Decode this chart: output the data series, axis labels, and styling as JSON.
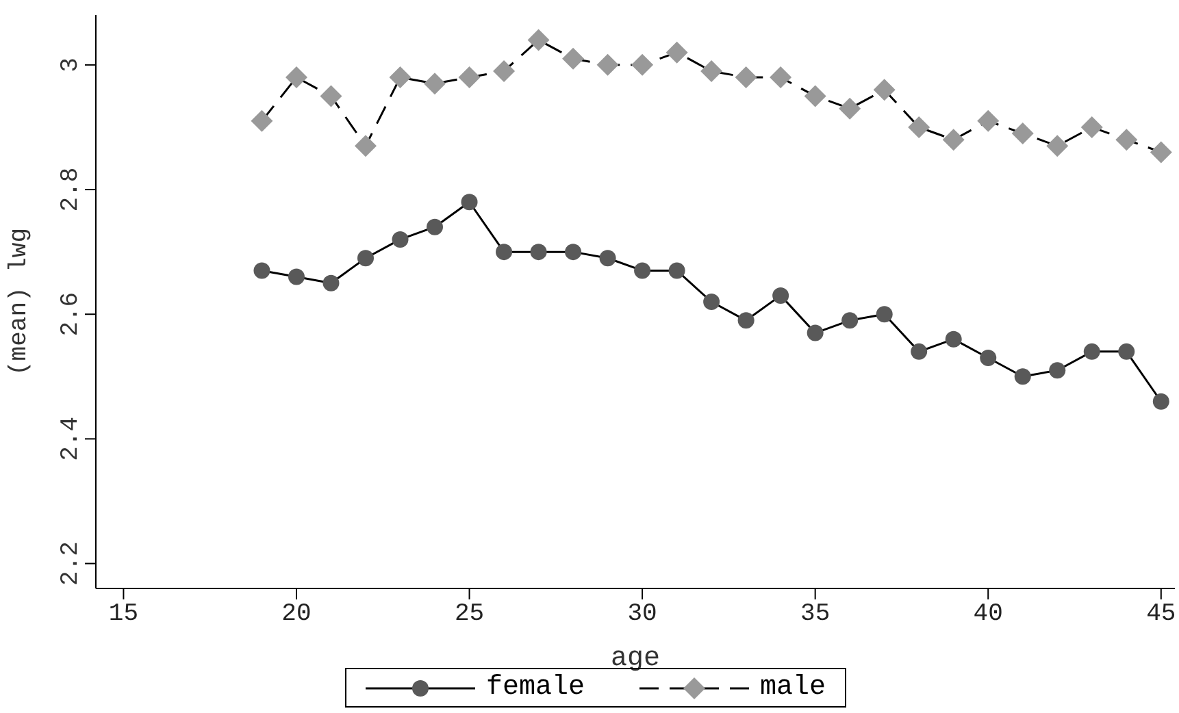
{
  "chart_data": {
    "type": "line",
    "xlabel": "age",
    "ylabel": "(mean) lwg",
    "x": [
      19,
      20,
      21,
      22,
      23,
      24,
      25,
      26,
      27,
      28,
      29,
      30,
      31,
      32,
      33,
      34,
      35,
      36,
      37,
      38,
      39,
      40,
      41,
      42,
      43,
      44,
      45
    ],
    "series": [
      {
        "name": "female",
        "color": "#595959",
        "marker": "circle",
        "line_style": "solid",
        "values": [
          2.67,
          2.66,
          2.65,
          2.69,
          2.72,
          2.74,
          2.78,
          2.7,
          2.7,
          2.7,
          2.69,
          2.67,
          2.67,
          2.62,
          2.59,
          2.63,
          2.57,
          2.59,
          2.6,
          2.54,
          2.56,
          2.53,
          2.5,
          2.51,
          2.54,
          2.54,
          2.46
        ]
      },
      {
        "name": "male",
        "color": "#999999",
        "marker": "diamond",
        "line_style": "dashed",
        "values": [
          2.91,
          2.98,
          2.95,
          2.87,
          2.98,
          2.97,
          2.98,
          2.99,
          3.04,
          3.01,
          3.0,
          3.0,
          3.02,
          2.99,
          2.98,
          2.98,
          2.95,
          2.93,
          2.96,
          2.9,
          2.88,
          2.91,
          2.89,
          2.87,
          2.9,
          2.88,
          2.86
        ]
      }
    ],
    "xlim": [
      14.2,
      45.4
    ],
    "xticks": [
      15,
      20,
      25,
      30,
      35,
      40,
      45
    ],
    "ylim": [
      2.16,
      3.08
    ],
    "yticks": [
      2.2,
      2.4,
      2.6,
      2.8,
      3
    ],
    "grid": false,
    "legend": "bottom"
  }
}
